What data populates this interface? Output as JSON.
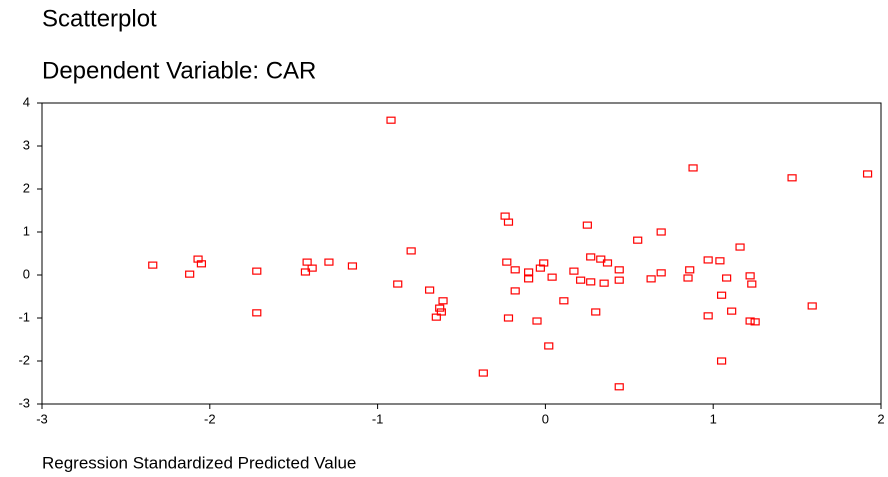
{
  "chart_data": {
    "type": "scatter",
    "title": "Scatterplot",
    "subtitle": "Dependent Variable: CAR",
    "x_label": "Regression Standardized Predicted Value",
    "color": "#ff0000",
    "xlim": [
      -3,
      2
    ],
    "xticks": [
      -3,
      -2,
      -1,
      0,
      1,
      2
    ],
    "ylim": [
      -3,
      4
    ],
    "yticks": [
      -3,
      -2,
      -1,
      0,
      1,
      2,
      3,
      4
    ],
    "x": [
      -0.92,
      0.88,
      1.47,
      1.92,
      -0.24,
      -0.22,
      0.25,
      0.69,
      0.55,
      1.16,
      -0.8,
      -2.34,
      -2.07,
      -2.05,
      -2.12,
      -1.72,
      -1.42,
      -1.39,
      -1.43,
      -1.29,
      -1.15,
      -0.88,
      -0.69,
      -1.72,
      -0.61,
      -0.63,
      -0.62,
      -0.65,
      -0.23,
      -0.18,
      -0.1,
      -0.1,
      -0.03,
      -0.01,
      0.04,
      -0.18,
      -0.22,
      -0.05,
      0.02,
      -0.37,
      0.11,
      0.17,
      0.21,
      0.27,
      0.27,
      0.33,
      0.37,
      0.35,
      0.44,
      0.44,
      0.3,
      0.44,
      0.63,
      0.69,
      0.86,
      0.85,
      0.97,
      1.04,
      0.97,
      1.05,
      1.08,
      1.11,
      1.05,
      1.22,
      1.23,
      1.22,
      1.25,
      1.59
    ],
    "values": [
      3.6,
      2.49,
      2.26,
      2.35,
      1.37,
      1.23,
      1.16,
      1.0,
      0.81,
      0.65,
      0.56,
      0.23,
      0.37,
      0.26,
      0.02,
      0.09,
      0.3,
      0.16,
      0.07,
      0.3,
      0.21,
      -0.21,
      -0.35,
      -0.88,
      -0.6,
      -0.77,
      -0.86,
      -0.98,
      0.3,
      0.12,
      0.07,
      -0.09,
      0.16,
      0.28,
      -0.05,
      -0.37,
      -1.0,
      -1.07,
      -1.65,
      -2.28,
      -0.6,
      0.09,
      -0.12,
      -0.16,
      0.42,
      0.37,
      0.28,
      -0.19,
      0.12,
      -0.12,
      -0.86,
      -2.6,
      -0.09,
      0.05,
      0.12,
      -0.07,
      0.35,
      0.33,
      -0.95,
      -0.47,
      -0.07,
      -0.84,
      -2.0,
      -0.02,
      -0.21,
      -1.07,
      -1.09,
      -0.72
    ]
  }
}
